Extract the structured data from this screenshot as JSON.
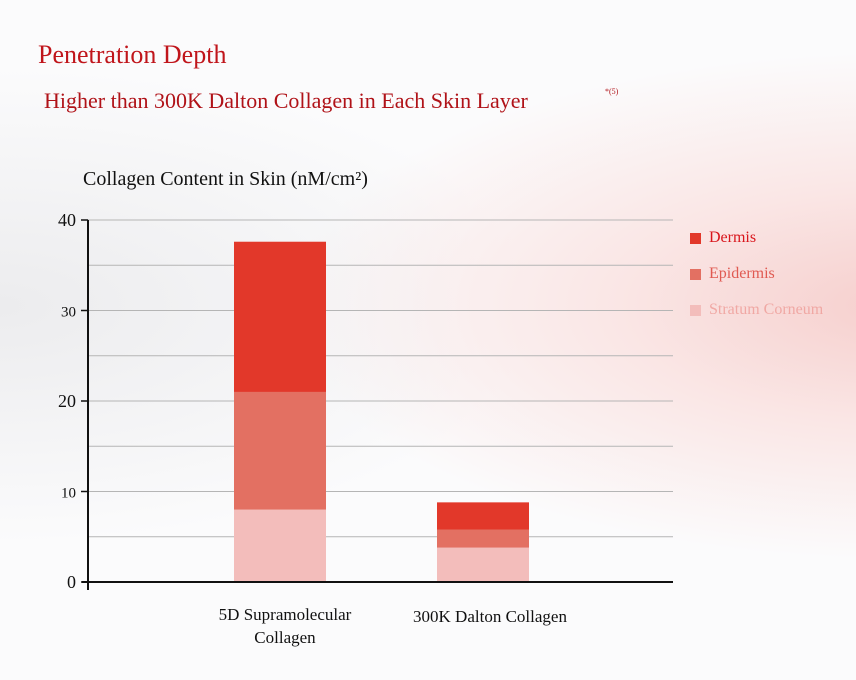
{
  "header": {
    "title": "Penetration Depth",
    "subtitle": "Higher than 300K Dalton Collagen in Each Skin Layer",
    "footnote": "*(5)"
  },
  "colors": {
    "title": "#c0151b",
    "dermis": "#e2382a",
    "epidermis": "#e37062",
    "stratum_corneum": "#f3bdbb"
  },
  "chart_data": {
    "type": "bar",
    "stacked": true,
    "title": "Collagen Content in Skin (nM/cm²)",
    "xlabel": "",
    "ylabel": "",
    "ylim": [
      0,
      40
    ],
    "yticks": [
      "0",
      "10",
      "20",
      "30",
      "40"
    ],
    "grid": true,
    "legend_position": "right",
    "categories": [
      "5D Supramolecular Collagen",
      "300K Dalton Collagen"
    ],
    "series": [
      {
        "name": "Stratum Corneum",
        "values": [
          8,
          3.8
        ],
        "color": "#f3bdbb"
      },
      {
        "name": "Epidermis",
        "values": [
          13,
          2
        ],
        "color": "#e37062"
      },
      {
        "name": "Dermis",
        "values": [
          16.6,
          3
        ],
        "color": "#e2382a"
      }
    ]
  },
  "legend": [
    {
      "label": "Dermis",
      "color": "#e2382a",
      "text_color": "#d9161c"
    },
    {
      "label": "Epidermis",
      "color": "#e37062",
      "text_color": "#e05a52"
    },
    {
      "label": "Stratum Corneum",
      "color": "#f3bdbb",
      "text_color": "#f0a8a4"
    }
  ]
}
